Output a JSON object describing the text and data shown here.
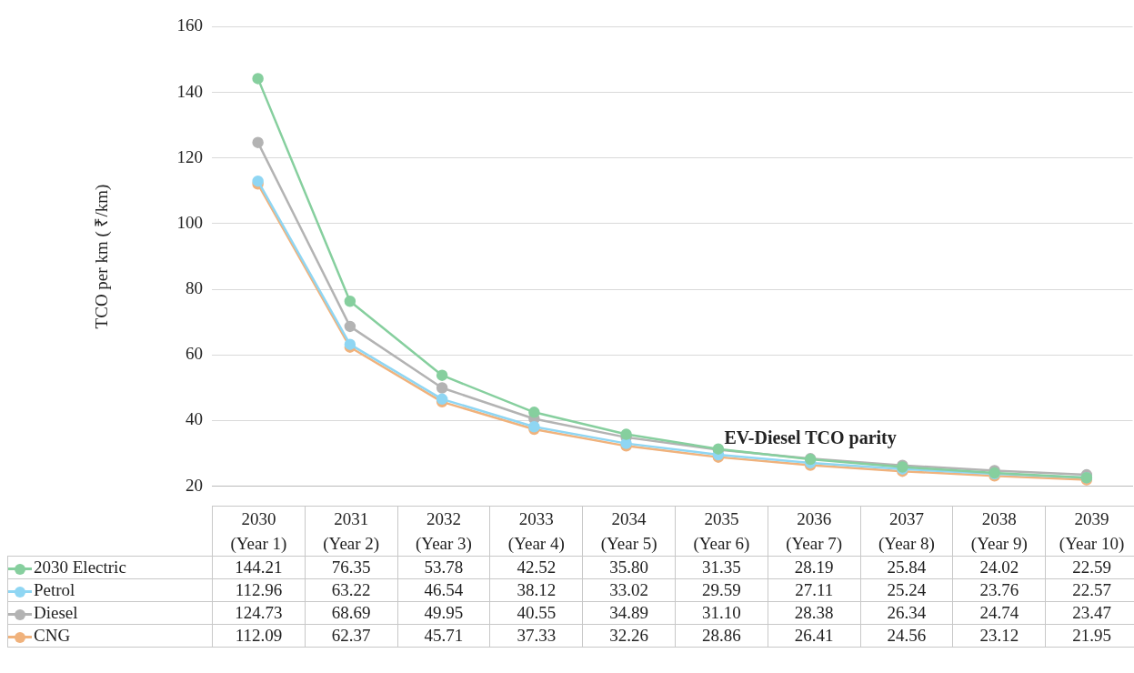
{
  "chart_data": {
    "type": "line",
    "ylabel": "TCO per km ( ₹/km)",
    "categories": [
      "2030 (Year 1)",
      "2031 (Year 2)",
      "2032 (Year 3)",
      "2033 (Year 4)",
      "2034 (Year 5)",
      "2035 (Year 6)",
      "2036 (Year 7)",
      "2037 (Year 8)",
      "2038 (Year 9)",
      "2039 (Year 10)"
    ],
    "series": [
      {
        "name": "2030 Electric",
        "color": "#86cf9e",
        "values": [
          144.21,
          76.35,
          53.78,
          42.52,
          35.8,
          31.35,
          28.19,
          25.84,
          24.02,
          22.59
        ],
        "value_labels": [
          "144.21",
          "76.35",
          "53.78",
          "42.52",
          "35.80",
          "31.35",
          "28.19",
          "25.84",
          "24.02",
          "22.59"
        ]
      },
      {
        "name": "Petrol",
        "color": "#8fd6f3",
        "values": [
          112.96,
          63.22,
          46.54,
          38.12,
          33.02,
          29.59,
          27.11,
          25.24,
          23.76,
          22.57
        ],
        "value_labels": [
          "112.96",
          "63.22",
          "46.54",
          "38.12",
          "33.02",
          "29.59",
          "27.11",
          "25.24",
          "23.76",
          "22.57"
        ]
      },
      {
        "name": "Diesel",
        "color": "#b3b3b3",
        "values": [
          124.73,
          68.69,
          49.95,
          40.55,
          34.89,
          31.1,
          28.38,
          26.34,
          24.74,
          23.47
        ],
        "value_labels": [
          "124.73",
          "68.69",
          "49.95",
          "40.55",
          "34.89",
          "31.10",
          "28.38",
          "26.34",
          "24.74",
          "23.47"
        ]
      },
      {
        "name": "CNG",
        "color": "#f0b27c",
        "values": [
          112.09,
          62.37,
          45.71,
          37.33,
          32.26,
          28.86,
          26.41,
          24.56,
          23.12,
          21.95
        ],
        "value_labels": [
          "112.09",
          "62.37",
          "45.71",
          "37.33",
          "32.26",
          "28.86",
          "26.41",
          "24.56",
          "23.12",
          "21.95"
        ]
      }
    ],
    "ylim": [
      20,
      160
    ],
    "yticks": [
      20,
      40,
      60,
      80,
      100,
      120,
      140,
      160
    ],
    "grid": "y",
    "marker": "circle",
    "line_style": "solid",
    "legend": "bottom",
    "annotations": [
      {
        "text": "EV-Diesel TCO parity",
        "x": "2036 (Year 7)",
        "y": 28.38
      }
    ]
  }
}
